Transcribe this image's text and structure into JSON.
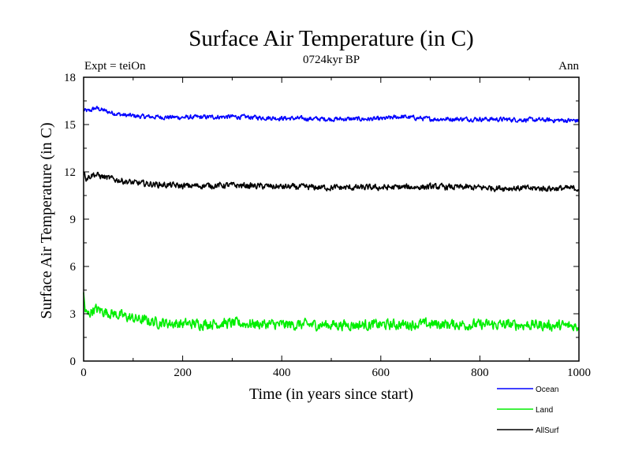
{
  "chart_data": {
    "type": "line",
    "title": "Surface Air Temperature (in C)",
    "subtitle": "0724kyr BP",
    "left_annotation": "Expt = teiOn",
    "right_annotation": "Ann",
    "xlabel": "Time (in years since start)",
    "ylabel": "Surface Air Temperature (in C)",
    "xlim": [
      0,
      1000
    ],
    "ylim": [
      0,
      18
    ],
    "x_ticks": [
      0,
      200,
      400,
      600,
      800,
      1000
    ],
    "y_ticks": [
      0,
      3,
      6,
      9,
      12,
      15,
      18
    ],
    "legend_position": "bottom-right",
    "grid": false,
    "series": [
      {
        "name": "Ocean",
        "color": "#0000ff",
        "anchors": [
          [
            0,
            15.9
          ],
          [
            10,
            15.85
          ],
          [
            25,
            16.05
          ],
          [
            50,
            15.8
          ],
          [
            80,
            15.6
          ],
          [
            120,
            15.5
          ],
          [
            200,
            15.45
          ],
          [
            300,
            15.5
          ],
          [
            400,
            15.4
          ],
          [
            500,
            15.35
          ],
          [
            600,
            15.35
          ],
          [
            640,
            15.5
          ],
          [
            700,
            15.35
          ],
          [
            800,
            15.35
          ],
          [
            900,
            15.3
          ],
          [
            1000,
            15.25
          ]
        ],
        "noise": 0.12
      },
      {
        "name": "Land",
        "color": "#00ee00",
        "anchors": [
          [
            0,
            4.2
          ],
          [
            3,
            3.2
          ],
          [
            8,
            2.9
          ],
          [
            20,
            3.3
          ],
          [
            35,
            3.2
          ],
          [
            60,
            3.0
          ],
          [
            100,
            2.7
          ],
          [
            150,
            2.45
          ],
          [
            200,
            2.35
          ],
          [
            300,
            2.4
          ],
          [
            400,
            2.3
          ],
          [
            500,
            2.3
          ],
          [
            600,
            2.3
          ],
          [
            700,
            2.35
          ],
          [
            800,
            2.3
          ],
          [
            900,
            2.3
          ],
          [
            1000,
            2.2
          ]
        ],
        "noise": 0.28
      },
      {
        "name": "AllSurf",
        "color": "#000000",
        "anchors": [
          [
            0,
            12.1
          ],
          [
            5,
            11.6
          ],
          [
            20,
            11.85
          ],
          [
            50,
            11.6
          ],
          [
            100,
            11.3
          ],
          [
            200,
            11.1
          ],
          [
            300,
            11.15
          ],
          [
            400,
            11.05
          ],
          [
            500,
            11.0
          ],
          [
            600,
            11.0
          ],
          [
            700,
            11.05
          ],
          [
            800,
            11.0
          ],
          [
            900,
            10.95
          ],
          [
            1000,
            10.95
          ]
        ],
        "noise": 0.16
      }
    ]
  }
}
